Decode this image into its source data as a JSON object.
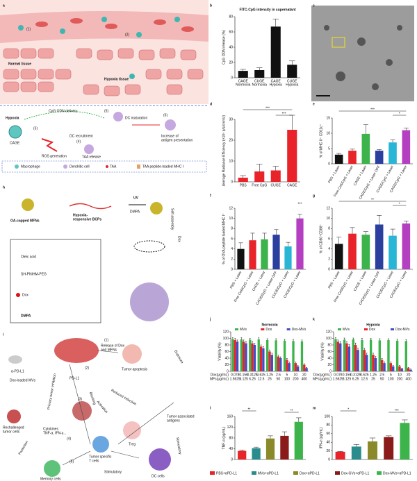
{
  "panel_labels": [
    "a",
    "b",
    "c",
    "d",
    "e",
    "f",
    "g",
    "h",
    "i",
    "j",
    "k",
    "l",
    "m"
  ],
  "diagram_a": {
    "step1": "(1)",
    "step2": "(2)",
    "normal_tissue": "Normal tissue",
    "hypoxia_tissue": "Hypoxia tissue",
    "hypoxia": "Hypoxia",
    "cpg_delivery": "CpG ODN delivery",
    "cage": "CAGE",
    "step3": "(3)",
    "ros": "ROS generation",
    "step4": "(4)",
    "dc_recruitment": "DC recruitment",
    "taa_release": "TAA release",
    "step5": "(5)",
    "dc_maturation": "DC maturation",
    "step6": "(6)",
    "increase": [
      "Increase of",
      "antigen presentation"
    ],
    "legend": [
      "Macrophage",
      "Dendritic cell",
      "TAA",
      "TAA peptide-loaded MHC I"
    ]
  },
  "diagram_h": {
    "oa_mfns": "OA-capped MFNs",
    "bcps": [
      "Hypoxia-",
      "responsive BCPs"
    ],
    "uv": "UV",
    "dmpa_arrow": "DMPA",
    "self_assembly": "Self-assembly",
    "dox_arrow": "Dox",
    "oleic": "Oleic acid",
    "peg": "SH-PNIHM-PEG",
    "dox": "Dox",
    "dmpa": "DMPA"
  },
  "diagram_i": {
    "apdl1": "α-PD-L1",
    "mvs": "Dox-loaded MVs",
    "step1": "(1)",
    "release": [
      "Release of Dox",
      "and MFNs"
    ],
    "apoptosis": "Tumor apoptosis",
    "exposure": "Exposure",
    "step2": "(2)",
    "pdl1": "PD-L1",
    "reduced": "Reduced induction",
    "activation": "Activation",
    "taa": [
      "Tumor associated",
      "antigens"
    ],
    "primary": "Primary tumor inhibition",
    "blocking": "Blocking",
    "step3": "(3)",
    "rechallenged": [
      "Rechallenged",
      "tumor cells"
    ],
    "cytokines": [
      "Cytokines",
      "TNF-α, IFN-γ..."
    ],
    "treg": "Treg",
    "step4": "(4)",
    "tcells": [
      "Tumor specific",
      "T cells"
    ],
    "stimulatory1": "Stimulatory",
    "protection": "Protection",
    "step5": "(5)",
    "memory": "Memory cells",
    "stimulatory2": "Stimulatory",
    "dc": "DC cells"
  },
  "chart_data": [
    {
      "type": "bar",
      "title": "FITC-CpG intensity in supernatant",
      "ylabel": "CpG ODN release (%)",
      "categories": [
        [
          "CAGE",
          "Normoxia"
        ],
        [
          "CUGE",
          "Normoxia"
        ],
        [
          "CAGE",
          "Hypoxia"
        ],
        [
          "CUGE",
          "Hypoxia"
        ]
      ],
      "values": [
        9,
        10,
        67,
        17
      ],
      "errors": [
        2,
        3,
        10,
        5
      ],
      "color": "#111111",
      "ylim": [
        0,
        80
      ],
      "yticks": [
        0,
        20,
        40,
        60,
        80
      ]
    },
    {
      "type": "bar",
      "ylabel": "Average Radiance Efficiency (×10⁸ p/s/cm²/sr)",
      "categories": [
        "PBS",
        "Free CpG",
        "CUGE",
        "CAGE"
      ],
      "values": [
        2,
        5,
        5.5,
        25
      ],
      "errors": [
        1,
        3.5,
        2,
        7
      ],
      "color": "#e8242a",
      "ylim": [
        0,
        30
      ],
      "yticks": [
        0,
        10,
        20,
        30
      ],
      "annotations": [
        "***",
        "***"
      ]
    },
    {
      "type": "bar",
      "ylabel": "% of MHC II⁺ CD11c⁺",
      "categories": [
        "PBS + Laser",
        "Free Ce6/CpG + Laser",
        "CAGE + Laser",
        "CAGE/CpG + Laser OFF",
        "CUGE/CpG + Laser",
        "CAGE/CpG + Laser"
      ],
      "values": [
        3,
        4.3,
        9.8,
        4.3,
        7,
        11
      ],
      "errors": [
        0.4,
        0.5,
        3,
        0.4,
        0.8,
        0.7
      ],
      "colors": [
        "#111111",
        "#e8242a",
        "#3cb44b",
        "#2b3f9e",
        "#29b6d6",
        "#b43fc1"
      ],
      "ylim": [
        0,
        15
      ],
      "yticks": [
        0,
        5,
        10,
        15
      ],
      "annotations": [
        "***",
        "*"
      ]
    },
    {
      "type": "bar",
      "ylabel": "% of OVA peptide loaded MHC I⁺",
      "categories": [
        "PBS + Laser",
        "Free Ce6/CpG + Laser",
        "CAGE + Laser",
        "CAGE/CpG + Laser OFF",
        "CUGE/CpG + Laser",
        "CAGE/CpG + Laser"
      ],
      "values": [
        4,
        5.7,
        5.9,
        6.8,
        4.5,
        10
      ],
      "errors": [
        1.2,
        1.4,
        1.2,
        1,
        0.8,
        0.8
      ],
      "colors": [
        "#111111",
        "#e8242a",
        "#3cb44b",
        "#2b3f9e",
        "#29b6d6",
        "#b43fc1"
      ],
      "ylim": [
        0,
        12
      ],
      "yticks": [
        0,
        2,
        4,
        6,
        8,
        10,
        12
      ],
      "annotations": [
        "***"
      ]
    },
    {
      "type": "bar",
      "ylabel": "% of CD80⁺CD86⁺",
      "categories": [
        "PBS + Laser",
        "Free Ce6/CpG + Laser",
        "CAGE + Laser",
        "CAGE/CpG + Laser OFF",
        "CUGE/CpG + Laser",
        "CAGE/CpG + Laser"
      ],
      "values": [
        5,
        7,
        6.8,
        8.8,
        6.6,
        9
      ],
      "errors": [
        1.3,
        1.2,
        0.6,
        1.8,
        1.3,
        0.5
      ],
      "colors": [
        "#111111",
        "#e8242a",
        "#3cb44b",
        "#2b3f9e",
        "#29b6d6",
        "#b43fc1"
      ],
      "ylim": [
        0,
        12
      ],
      "yticks": [
        0,
        2,
        4,
        6,
        8,
        10,
        12
      ],
      "annotations": [
        "**",
        "*"
      ]
    },
    {
      "type": "bar",
      "title": "Normoxia",
      "ylabel": "Viability (%)",
      "x_row_labels": [
        "Dox(μg/mL)",
        "MFs(μg/mL)"
      ],
      "categories": [
        "0.078",
        "0.156",
        "0.3125",
        "0.625",
        "1.25",
        "2.5",
        "5",
        "10",
        "20"
      ],
      "categories2": [
        "1.5625",
        "3.125",
        "6.25",
        "12.5",
        "25",
        "50",
        "100",
        "200",
        "400"
      ],
      "series": [
        {
          "name": "MVs",
          "color": "#3cb44b",
          "values": [
            98,
            97,
            96,
            97,
            95,
            94,
            93,
            92,
            91
          ],
          "errors": [
            4,
            5,
            4,
            5,
            4,
            5,
            4,
            5,
            4
          ]
        },
        {
          "name": "Dox",
          "color": "#e8242a",
          "values": [
            95,
            90,
            85,
            75,
            60,
            45,
            35,
            25,
            20
          ],
          "errors": [
            5,
            5,
            6,
            5,
            5,
            4,
            4,
            3,
            3
          ]
        },
        {
          "name": "Dox-MVs",
          "color": "#3f4fc4",
          "values": [
            90,
            85,
            80,
            70,
            50,
            40,
            25,
            15,
            10
          ],
          "errors": [
            5,
            6,
            5,
            5,
            5,
            4,
            3,
            3,
            2
          ]
        }
      ],
      "ylim": [
        0,
        120
      ],
      "yticks": [
        0,
        20,
        40,
        60,
        80,
        100,
        120
      ]
    },
    {
      "type": "bar",
      "title": "Hypoxia",
      "ylabel": "Viability (%)",
      "x_row_labels": [
        "Dox(μg/mL)",
        "MFs(μg/mL)"
      ],
      "categories": [
        "0.078",
        "0.156",
        "0.3125",
        "0.625",
        "1.25",
        "2.5",
        "5",
        "10",
        "20"
      ],
      "categories2": [
        "1.5625",
        "3.125",
        "6.25",
        "12.5",
        "25",
        "50",
        "100",
        "200",
        "400"
      ],
      "series": [
        {
          "name": "MVs",
          "color": "#3cb44b",
          "values": [
            98,
            96,
            97,
            95,
            96,
            94,
            95,
            93,
            92
          ],
          "errors": [
            4,
            5,
            4,
            5,
            4,
            5,
            4,
            5,
            4
          ]
        },
        {
          "name": "Dox",
          "color": "#e8242a",
          "values": [
            90,
            85,
            80,
            65,
            50,
            35,
            25,
            15,
            10
          ],
          "errors": [
            5,
            5,
            6,
            5,
            5,
            4,
            4,
            3,
            2
          ]
        },
        {
          "name": "Dox-MVs",
          "color": "#3f4fc4",
          "values": [
            85,
            75,
            65,
            50,
            40,
            25,
            15,
            8,
            5
          ],
          "errors": [
            5,
            6,
            5,
            5,
            5,
            4,
            3,
            2,
            2
          ]
        }
      ],
      "ylim": [
        0,
        120
      ],
      "yticks": [
        0,
        20,
        40,
        60,
        80,
        100,
        120
      ]
    },
    {
      "type": "bar",
      "ylabel": "TNF-α (pg/mL)",
      "categories": [
        "PBS+αPD-L1",
        "MVs+αPD-L1",
        "Dox+αPD-L1",
        "Dox-GVs+αPD-L1",
        "Dox-MVs+αPD-L1"
      ],
      "values": [
        32,
        42,
        78,
        88,
        140
      ],
      "errors": [
        3,
        4,
        10,
        15,
        15
      ],
      "colors": [
        "#e8242a",
        "#2a8c8c",
        "#8a8a2a",
        "#8b1a1a",
        "#3cb44b"
      ],
      "ylim": [
        0,
        160
      ],
      "yticks": [
        0,
        40,
        80,
        120,
        160
      ],
      "annotations": [
        "**",
        "**"
      ]
    },
    {
      "type": "bar",
      "ylabel": "IFN-γ (pg/mL)",
      "categories": [
        null,
        null,
        null,
        null,
        null
      ],
      "values": [
        18,
        30,
        42,
        52,
        85
      ],
      "errors": [
        1,
        5,
        8,
        3,
        7
      ],
      "colors": [
        "#e8242a",
        "#2a8c8c",
        "#8a8a2a",
        "#8b1a1a",
        "#3cb44b"
      ],
      "ylim": [
        0,
        100
      ],
      "yticks": [
        0,
        20,
        40,
        60,
        80,
        100
      ],
      "annotations": [
        "*",
        "***"
      ]
    }
  ]
}
